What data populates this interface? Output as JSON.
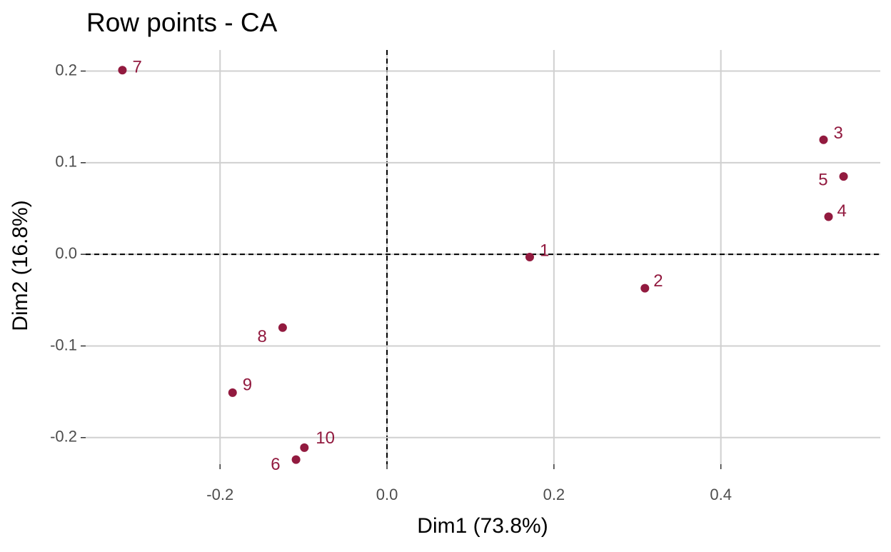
{
  "chart_data": {
    "type": "scatter",
    "title": "Row points - CA",
    "x_label": "Dim1 (73.8%)",
    "y_label": "Dim2 (16.8%)",
    "labels": [
      "1",
      "2",
      "3",
      "4",
      "5",
      "6",
      "7",
      "8",
      "9",
      "10"
    ],
    "x": [
      0.171,
      0.309,
      0.523,
      0.529,
      0.547,
      -0.109,
      -0.317,
      -0.125,
      -0.185,
      -0.099
    ],
    "values": [
      -0.003,
      -0.037,
      0.125,
      0.041,
      0.085,
      -0.224,
      0.201,
      -0.08,
      -0.151,
      -0.211
    ],
    "color": "#921a3f",
    "xlim": [
      -0.361,
      0.591
    ],
    "ylim": [
      -0.229,
      0.223
    ],
    "xticks": [
      -0.2,
      {
        "value": 0,
        "label": "0.0"
      },
      0.2,
      0.4
    ],
    "yticks": [
      -0.2,
      -0.1,
      {
        "value": 0,
        "label": "0.0"
      },
      0.1,
      0.2
    ],
    "grid": true
  }
}
